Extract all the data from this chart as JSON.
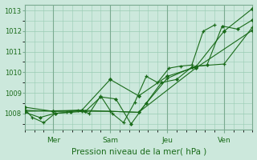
{
  "xlabel": "Pression niveau de la mer( hPa )",
  "bg_color": "#cce8dc",
  "grid_color": "#99ccb3",
  "line_color": "#1a6b1a",
  "xlim": [
    0,
    120
  ],
  "ylim": [
    1007.2,
    1013.3
  ],
  "yticks": [
    1008,
    1009,
    1010,
    1011,
    1012,
    1013
  ],
  "xtick_positions": [
    15,
    45,
    75,
    105
  ],
  "xtick_labels": [
    "Mer",
    "Sam",
    "Jeu",
    "Ven"
  ],
  "vline_positions": [
    15,
    45,
    75,
    105
  ],
  "s1_x": [
    0,
    4,
    10,
    16,
    22,
    28,
    34,
    40,
    46,
    52,
    58,
    64,
    70,
    76,
    82,
    88,
    94,
    100
  ],
  "s1_y": [
    1008.2,
    1007.8,
    1007.55,
    1008.0,
    1008.05,
    1008.15,
    1008.0,
    1008.85,
    1008.0,
    1007.55,
    1008.55,
    1009.8,
    1009.5,
    1010.2,
    1010.3,
    1010.35,
    1012.0,
    1012.3
  ],
  "s2_x": [
    0,
    8,
    16,
    24,
    32,
    40,
    48,
    56,
    64,
    72,
    80,
    88,
    96,
    104,
    112,
    120
  ],
  "s2_y": [
    1008.05,
    1007.8,
    1008.0,
    1008.05,
    1008.1,
    1008.8,
    1008.7,
    1007.48,
    1008.5,
    1009.5,
    1009.65,
    1010.25,
    1010.35,
    1012.25,
    1012.1,
    1012.55
  ],
  "s3_x": [
    0,
    15,
    30,
    45,
    60,
    75,
    90,
    105,
    120
  ],
  "s3_y": [
    1008.3,
    1008.1,
    1008.15,
    1009.65,
    1008.85,
    1009.8,
    1010.25,
    1012.0,
    1013.1
  ],
  "s4_x": [
    0,
    15,
    30,
    45,
    60,
    75,
    90,
    105,
    120
  ],
  "s4_y": [
    1008.15,
    1008.1,
    1008.1,
    1008.1,
    1008.05,
    1009.7,
    1010.3,
    1010.4,
    1012.2
  ],
  "s5_x": [
    0,
    30,
    60,
    90,
    120
  ],
  "s5_y": [
    1008.1,
    1008.15,
    1008.05,
    1010.2,
    1012.05
  ]
}
